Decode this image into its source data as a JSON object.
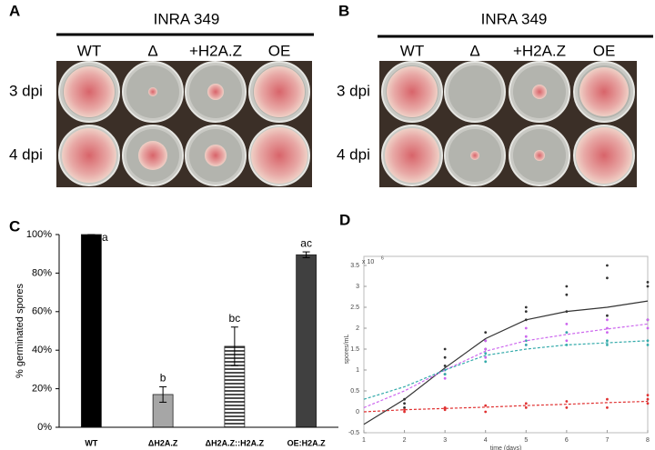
{
  "panels": [
    {
      "label": "A",
      "title": "INRA 349",
      "columns": [
        "WT",
        "Δ",
        "+H2A.Z",
        "OE"
      ],
      "rows": [
        "3 dpi",
        "4 dpi"
      ]
    },
    {
      "label": "B",
      "title": "INRA 349",
      "columns": [
        "WT",
        "Δ",
        "+H2A.Z",
        "OE"
      ],
      "rows": [
        "3 dpi",
        "4 dpi"
      ]
    }
  ],
  "chart_data": [
    {
      "label": "C",
      "type": "bar",
      "ylabel": "% germinated spores",
      "categories": [
        "WT",
        "ΔH2A.Z",
        "ΔH2A.Z::H2A.Z",
        "OE:H2A.Z"
      ],
      "values": [
        100,
        17,
        42,
        89.5
      ],
      "errors": [
        0,
        4,
        10,
        1.5
      ],
      "letters": [
        "a",
        "b",
        "bc",
        "ac"
      ],
      "colors": [
        "#000000",
        "#a6a6a6",
        "#ffffff",
        "#404040"
      ],
      "hatch": [
        false,
        false,
        true,
        false
      ],
      "ylim": [
        0,
        100
      ],
      "yticks": [
        {
          "value": 0,
          "label": "0%"
        },
        {
          "value": 20,
          "label": "20%"
        },
        {
          "value": 40,
          "label": "40%"
        },
        {
          "value": 60,
          "label": "60%"
        },
        {
          "value": 80,
          "label": "80%"
        },
        {
          "value": 100,
          "label": "100%"
        }
      ]
    },
    {
      "label": "D",
      "type": "scatter",
      "xlabel": "time (days)",
      "ylabel": "spores/mL",
      "y_multiplier_base": "x 10",
      "y_multiplier_power": "6",
      "xlim": [
        1,
        8
      ],
      "xticks": [
        1,
        2,
        3,
        4,
        5,
        6,
        7,
        8
      ],
      "ylim": [
        -0.5,
        3.5
      ],
      "yticks": [
        -0.5,
        0,
        0.5,
        1,
        1.5,
        2,
        2.5,
        3,
        3.5
      ],
      "series": [
        {
          "color": "#333333",
          "line_style": "solid",
          "x": [
            2,
            2,
            2,
            3,
            3,
            3,
            3,
            4,
            4,
            4,
            5,
            5,
            5,
            6,
            6,
            6,
            7,
            7,
            7,
            8,
            8,
            8
          ],
          "values": [
            0.1,
            0.2,
            0.3,
            0.9,
            1.1,
            1.3,
            1.5,
            1.5,
            1.7,
            1.9,
            2.2,
            2.4,
            2.5,
            2.4,
            2.8,
            3.0,
            2.3,
            3.2,
            3.5,
            2.2,
            3.0,
            3.1
          ],
          "fit_x": [
            1,
            2,
            3,
            4,
            5,
            6,
            7,
            8
          ],
          "fit_values": [
            -0.3,
            0.3,
            1.05,
            1.75,
            2.2,
            2.4,
            2.5,
            2.65
          ]
        },
        {
          "color": "#cc66ee",
          "line_style": "dashed",
          "x": [
            3,
            3,
            4,
            4,
            4,
            5,
            5,
            5,
            6,
            6,
            6,
            7,
            7,
            7,
            8,
            8
          ],
          "values": [
            0.8,
            1.0,
            1.3,
            1.5,
            1.7,
            1.6,
            1.8,
            2.0,
            1.7,
            1.9,
            2.1,
            1.9,
            2.0,
            2.2,
            2.0,
            2.2
          ],
          "fit_x": [
            1,
            2,
            3,
            4,
            5,
            6,
            7,
            8
          ],
          "fit_values": [
            0.1,
            0.5,
            1.0,
            1.45,
            1.7,
            1.85,
            1.98,
            2.1
          ]
        },
        {
          "color": "#33aaaa",
          "line_style": "dashed",
          "x": [
            3,
            3,
            4,
            4,
            5,
            5,
            6,
            6,
            7,
            7,
            8,
            8
          ],
          "values": [
            0.9,
            1.0,
            1.2,
            1.4,
            1.6,
            1.7,
            1.6,
            1.9,
            1.6,
            1.7,
            1.6,
            1.7
          ],
          "fit_x": [
            1,
            2,
            3,
            4,
            5,
            6,
            7,
            8
          ],
          "fit_values": [
            0.3,
            0.6,
            1.0,
            1.35,
            1.5,
            1.6,
            1.65,
            1.7
          ]
        },
        {
          "color": "#e03030",
          "line_style": "dashed",
          "x": [
            2,
            2,
            3,
            3,
            4,
            4,
            5,
            5,
            6,
            6,
            7,
            7,
            8,
            8,
            8
          ],
          "values": [
            0.0,
            0.05,
            0.05,
            0.1,
            0.0,
            0.15,
            0.1,
            0.2,
            0.1,
            0.25,
            0.1,
            0.3,
            0.2,
            0.3,
            0.4
          ],
          "fit_x": [
            1,
            2,
            3,
            4,
            5,
            6,
            7,
            8
          ],
          "fit_values": [
            0.0,
            0.05,
            0.08,
            0.11,
            0.15,
            0.18,
            0.22,
            0.25
          ]
        }
      ]
    }
  ]
}
